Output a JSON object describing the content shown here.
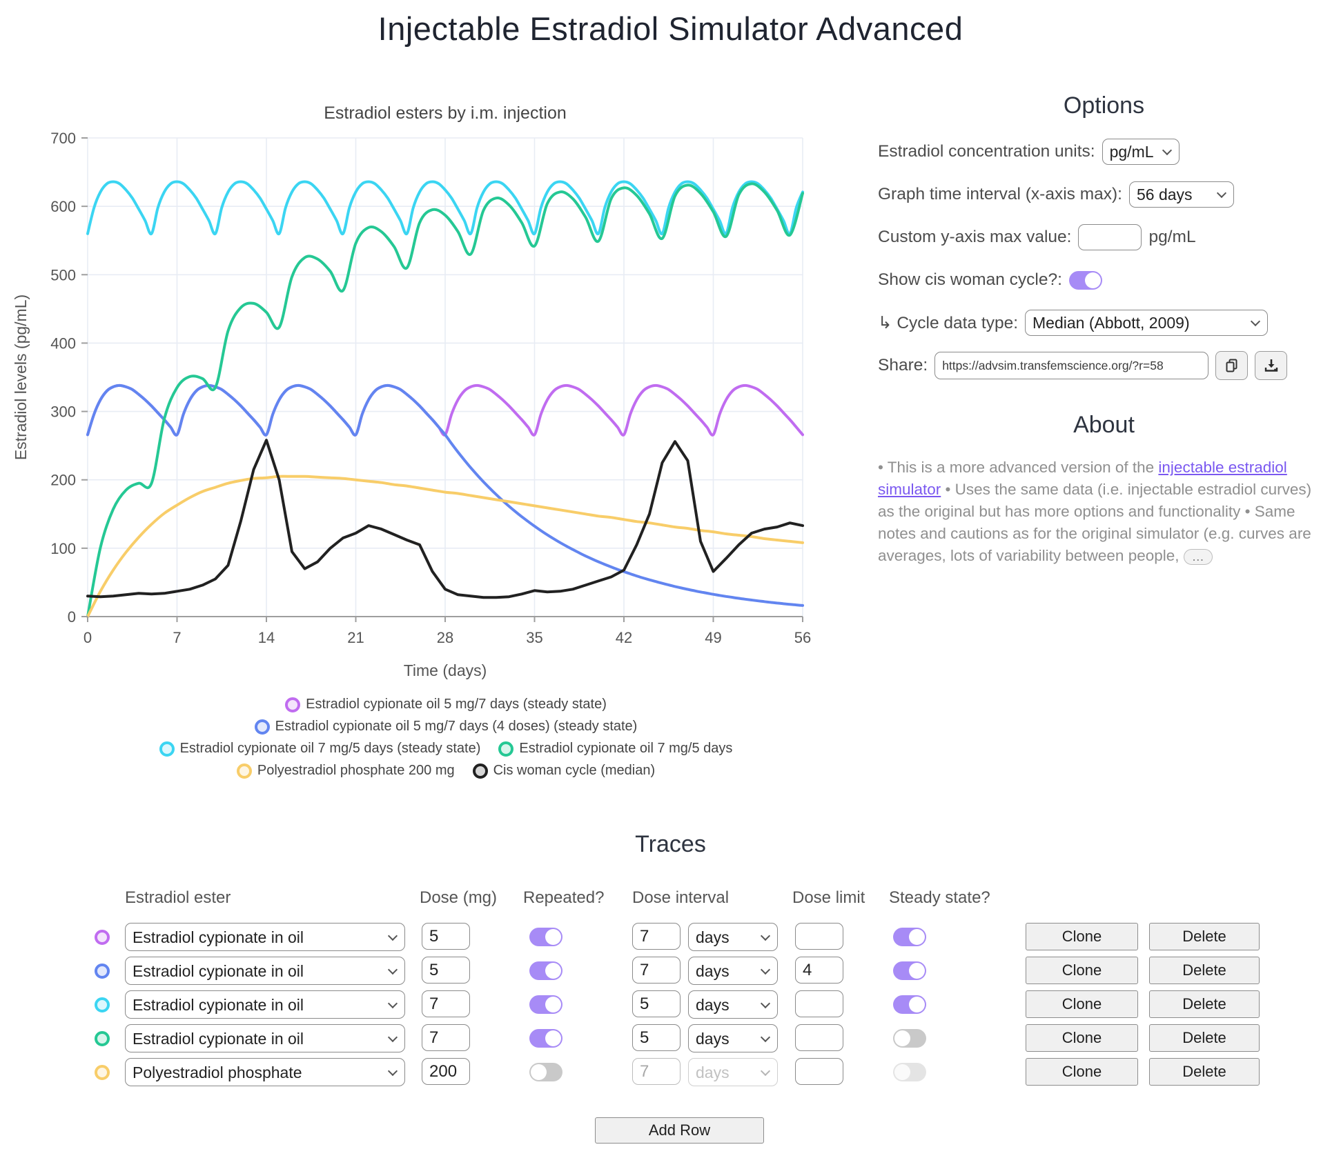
{
  "page": {
    "title": "Injectable Estradiol Simulator Advanced"
  },
  "chart_data": {
    "type": "line",
    "title": "Estradiol esters by i.m. injection",
    "xlabel": "Time (days)",
    "ylabel": "Estradiol levels (pg/mL)",
    "xlim": [
      0,
      56
    ],
    "ylim": [
      0,
      700
    ],
    "x_ticks": [
      0,
      7,
      14,
      21,
      28,
      35,
      42,
      49,
      56
    ],
    "y_ticks": [
      0,
      100,
      200,
      300,
      400,
      500,
      600,
      700
    ],
    "grid": true,
    "legend_position": "bottom",
    "legend_rows": [
      [
        0
      ],
      [
        1
      ],
      [
        2,
        3
      ],
      [
        4,
        5
      ]
    ],
    "series": [
      {
        "name": "Estradiol cypionate oil 5 mg/7 days (steady state)",
        "color": "#c06cf0",
        "x0": 0,
        "dx": 0.5,
        "interp": "smooth",
        "values": [
          266,
          296,
          317,
          330,
          336,
          338,
          336,
          332,
          325,
          317,
          308,
          298,
          288,
          277,
          266,
          296,
          317,
          330,
          336,
          338,
          336,
          332,
          325,
          317,
          308,
          298,
          288,
          277,
          266,
          296,
          317,
          330,
          336,
          338,
          336,
          332,
          325,
          317,
          308,
          298,
          288,
          277,
          266,
          296,
          317,
          330,
          336,
          338,
          336,
          332,
          325,
          317,
          308,
          298,
          288,
          277,
          266,
          296,
          317,
          330,
          336,
          338,
          336,
          332,
          325,
          317,
          308,
          298,
          288,
          277,
          266,
          296,
          317,
          330,
          336,
          338,
          336,
          332,
          325,
          317,
          308,
          298,
          288,
          277,
          266,
          296,
          317,
          330,
          336,
          338,
          336,
          332,
          325,
          317,
          308,
          298,
          288,
          277,
          266,
          296,
          317,
          330,
          336,
          338,
          336,
          332,
          325,
          317,
          308,
          298,
          288,
          277,
          266
        ]
      },
      {
        "name": "Estradiol cypionate oil 5 mg/7 days (4 doses) (steady state)",
        "color": "#6285f0",
        "x0": 0,
        "dx": 0.5,
        "interp": "smooth",
        "values": [
          266,
          296,
          317,
          330,
          336,
          338,
          336,
          332,
          325,
          317,
          308,
          298,
          288,
          277,
          266,
          296,
          317,
          330,
          336,
          338,
          336,
          332,
          325,
          317,
          308,
          298,
          288,
          277,
          266,
          296,
          317,
          330,
          336,
          338,
          336,
          332,
          325,
          317,
          308,
          298,
          288,
          277,
          266,
          296,
          317,
          330,
          336,
          338,
          336,
          332,
          325,
          317,
          308,
          298,
          288,
          277,
          266,
          253,
          240.7,
          229,
          217.8,
          207.2,
          197.1,
          187.5,
          178.4,
          169.7,
          161.4,
          153.5,
          146.1,
          139,
          132.2,
          125.7,
          119.6,
          113.8,
          108.2,
          103,
          98,
          93.2,
          88.6,
          84.3,
          80.2,
          76.3,
          72.6,
          69,
          65.7,
          62.5,
          59.4,
          56.5,
          53.8,
          51.2,
          48.7,
          46.3,
          44,
          41.9,
          39.8,
          37.9,
          36,
          34.3,
          32.6,
          31,
          29.5,
          28.1,
          26.7,
          25.4,
          24.2,
          23,
          21.9,
          20.8,
          19.8,
          18.8,
          17.9,
          17,
          16.2
        ]
      },
      {
        "name": "Estradiol cypionate oil 7 mg/5 days (steady state)",
        "color": "#3bd5f2",
        "x0": 0,
        "dx": 0.5,
        "interp": "smooth",
        "values": [
          560,
          598,
          621,
          633,
          636,
          633,
          624,
          612,
          596,
          579,
          560,
          598,
          621,
          633,
          636,
          633,
          624,
          612,
          596,
          579,
          560,
          598,
          621,
          633,
          636,
          633,
          624,
          612,
          596,
          579,
          560,
          598,
          621,
          633,
          636,
          633,
          624,
          612,
          596,
          579,
          560,
          598,
          621,
          633,
          636,
          633,
          624,
          612,
          596,
          579,
          560,
          598,
          621,
          633,
          636,
          633,
          624,
          612,
          596,
          579,
          560,
          598,
          621,
          633,
          636,
          633,
          624,
          612,
          596,
          579,
          560,
          598,
          621,
          633,
          636,
          633,
          624,
          612,
          596,
          579,
          560,
          598,
          621,
          633,
          636,
          633,
          624,
          612,
          596,
          579,
          560,
          598,
          621,
          633,
          636,
          633,
          624,
          612,
          596,
          579,
          560,
          598,
          621,
          633,
          636,
          633,
          624,
          612,
          596,
          579,
          560,
          598,
          621
        ]
      },
      {
        "name": "Estradiol cypionate oil 7 mg/5 days",
        "color": "#25c894",
        "x0": 0,
        "dx": 1,
        "interp": "smooth",
        "values": [
          0,
          101,
          157,
          185,
          195,
          195,
          289,
          335,
          351,
          348,
          335,
          418,
          452,
          458,
          445,
          423,
          497,
          525,
          523,
          505,
          477,
          546,
          569,
          563,
          541,
          510,
          576,
          595,
          587,
          563,
          530,
          594,
          612,
          602,
          576,
          542,
          604,
          621,
          611,
          584,
          549,
          611,
          627,
          616,
          589,
          553,
          615,
          631,
          619,
          592,
          556,
          617,
          633,
          621,
          594,
          558,
          619
        ]
      },
      {
        "name": "Polyestradiol phosphate 200 mg",
        "color": "#f8cd69",
        "x0": 0,
        "dx": 1,
        "interp": "smooth",
        "values": [
          0,
          37,
          68,
          94,
          116,
          135,
          151,
          163,
          174,
          183,
          189,
          195,
          199,
          202,
          203,
          205,
          205,
          205,
          204,
          203,
          202,
          200,
          198,
          196,
          193,
          191,
          188,
          185,
          182,
          180,
          177,
          174,
          171,
          168,
          165,
          162,
          159,
          156,
          153,
          150,
          147,
          145,
          142,
          139,
          137,
          134,
          131,
          129,
          126,
          124,
          121,
          119,
          117,
          114,
          112,
          110,
          108
        ]
      },
      {
        "name": "Cis woman cycle (median)",
        "color": "#212121",
        "x0": 0,
        "dx": 1,
        "interp": "linear",
        "values": [
          30,
          29,
          30,
          32,
          34,
          33,
          34,
          37,
          40,
          46,
          55,
          75,
          140,
          215,
          258,
          200,
          95,
          70,
          80,
          100,
          115,
          122,
          133,
          128,
          120,
          112,
          105,
          66,
          40,
          32,
          30,
          28,
          28,
          29,
          33,
          38,
          36,
          37,
          40,
          46,
          52,
          58,
          68,
          105,
          150,
          225,
          256,
          228,
          110,
          66,
          85,
          105,
          122,
          128,
          131,
          137,
          133
        ]
      }
    ]
  },
  "options": {
    "heading": "Options",
    "units_label": "Estradiol concentration units:",
    "units_value": "pg/mL",
    "interval_label": "Graph time interval (x-axis max):",
    "interval_value": "56 days",
    "ymax_label": "Custom y-axis max value:",
    "ymax_value": "",
    "ymax_suffix": "pg/mL",
    "cycle_label": "Show cis woman cycle?:",
    "cycle_on": true,
    "cycle_type_label": "↳ Cycle data type:",
    "cycle_type_value": "Median (Abbott, 2009)",
    "share_label": "Share:",
    "share_url": "https://advsim.transfemscience.org/?r=58",
    "copy_icon": "copy-icon",
    "download_icon": "download-icon"
  },
  "about": {
    "heading": "About",
    "text_before_link": "• This is a more advanced version of the ",
    "link_text": "injectable estradiol simulator",
    "text_after_link": " • Uses the same data (i.e. injectable estradiol curves) as the original but has more options and functionality • Same notes and cautions as for the original simulator (e.g. curves are averages, lots of variability between people, ",
    "ellipsis_label": "…"
  },
  "traces": {
    "heading": "Traces",
    "headers": [
      "Estradiol ester",
      "Dose (mg)",
      "Repeated?",
      "Dose interval",
      "Dose limit",
      "Steady state?"
    ],
    "clone_label": "Clone",
    "delete_label": "Delete",
    "add_row_label": "Add Row",
    "rows": [
      {
        "color": "#c06cf0",
        "ester": "Estradiol cypionate in oil",
        "dose": "5",
        "repeated": true,
        "interval": "7",
        "interval_unit": "days",
        "dose_limit": "",
        "steady": true,
        "interval_disabled": false,
        "steady_disabled": false
      },
      {
        "color": "#6285f0",
        "ester": "Estradiol cypionate in oil",
        "dose": "5",
        "repeated": true,
        "interval": "7",
        "interval_unit": "days",
        "dose_limit": "4",
        "steady": true,
        "interval_disabled": false,
        "steady_disabled": false
      },
      {
        "color": "#3bd5f2",
        "ester": "Estradiol cypionate in oil",
        "dose": "7",
        "repeated": true,
        "interval": "5",
        "interval_unit": "days",
        "dose_limit": "",
        "steady": true,
        "interval_disabled": false,
        "steady_disabled": false
      },
      {
        "color": "#25c894",
        "ester": "Estradiol cypionate in oil",
        "dose": "7",
        "repeated": true,
        "interval": "5",
        "interval_unit": "days",
        "dose_limit": "",
        "steady": false,
        "interval_disabled": false,
        "steady_disabled": false
      },
      {
        "color": "#f8cd69",
        "ester": "Polyestradiol phosphate",
        "dose": "200",
        "repeated": false,
        "interval": "7",
        "interval_unit": "days",
        "dose_limit": "",
        "steady": false,
        "interval_disabled": true,
        "steady_disabled": true
      }
    ]
  },
  "style": {
    "grid_color": "#e8ecf4",
    "axis_color": "#9e9e9e",
    "tick_text_color": "#555555",
    "chart_title_color": "#444444",
    "toggle_on_color": "#a78bf6",
    "link_color": "#7a58f0"
  }
}
